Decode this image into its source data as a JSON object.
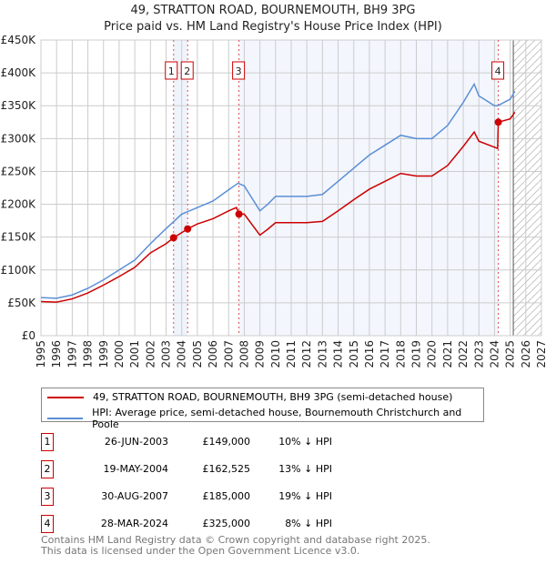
{
  "header": {
    "title": "49, STRATTON ROAD, BOURNEMOUTH, BH9 3PG",
    "subtitle": "Price paid vs. HM Land Registry's House Price Index (HPI)"
  },
  "chart_data": {
    "type": "line",
    "title": "49, STRATTON ROAD, BOURNEMOUTH, BH9 3PG",
    "xlim": [
      1995,
      2027
    ],
    "ylim": [
      0,
      450000
    ],
    "y_ticks": [
      0,
      50000,
      100000,
      150000,
      200000,
      250000,
      300000,
      350000,
      400000,
      450000
    ],
    "y_tick_labels": [
      "£0",
      "£50K",
      "£100K",
      "£150K",
      "£200K",
      "£250K",
      "£300K",
      "£350K",
      "£400K",
      "£450K"
    ],
    "x_ticks": [
      1995,
      1996,
      1997,
      1998,
      1999,
      2000,
      2001,
      2002,
      2003,
      2004,
      2005,
      2006,
      2007,
      2008,
      2009,
      2010,
      2011,
      2012,
      2013,
      2014,
      2015,
      2016,
      2017,
      2018,
      2019,
      2020,
      2021,
      2022,
      2023,
      2024,
      2025,
      2026,
      2027
    ],
    "hatch_from": 2025.2,
    "series": [
      {
        "name": "HPI",
        "color": "#5b8fd6",
        "x": [
          1995,
          1996,
          1997,
          1998,
          1999,
          2000,
          2001,
          2002,
          2003,
          2004,
          2005,
          2006,
          2007,
          2007.6,
          2008,
          2009,
          2009.5,
          2010,
          2011,
          2012,
          2013,
          2014,
          2015,
          2016,
          2017,
          2018,
          2019,
          2020,
          2021,
          2022,
          2022.7,
          2023,
          2024,
          2024.2,
          2025,
          2025.3
        ],
        "y": [
          58000,
          57000,
          62000,
          72000,
          85000,
          100000,
          115000,
          140000,
          163000,
          185000,
          195000,
          205000,
          222000,
          232000,
          228000,
          190000,
          200000,
          212000,
          212000,
          212000,
          215000,
          235000,
          255000,
          275000,
          290000,
          305000,
          300000,
          300000,
          320000,
          355000,
          383000,
          365000,
          350000,
          350000,
          360000,
          372000
        ]
      },
      {
        "name": "Price paid",
        "color": "#cc0000",
        "x": [
          1995,
          1996,
          1997,
          1998,
          1999,
          2000,
          2001,
          2002,
          2003,
          2003.48,
          2004.38,
          2005,
          2006,
          2007,
          2007.5,
          2007.66,
          2008,
          2009,
          2009.5,
          2010,
          2011,
          2012,
          2013,
          2014,
          2015,
          2016,
          2017,
          2018,
          2019,
          2020,
          2021,
          2022,
          2022.7,
          2023,
          2024.2,
          2024.24,
          2025,
          2025.3
        ],
        "y": [
          52000,
          51000,
          56000,
          65000,
          77000,
          90000,
          104000,
          126000,
          140000,
          149000,
          162525,
          170000,
          178000,
          190000,
          195000,
          185000,
          185000,
          153000,
          162000,
          172000,
          172000,
          172000,
          174000,
          190000,
          207000,
          223000,
          235000,
          247000,
          243000,
          243000,
          259000,
          288000,
          310000,
          296000,
          285000,
          325000,
          330000,
          340000
        ]
      }
    ],
    "sales": [
      {
        "label": "1",
        "x": 2003.48,
        "y": 149000
      },
      {
        "label": "2",
        "x": 2004.38,
        "y": 162525
      },
      {
        "label": "3",
        "x": 2007.66,
        "y": 185000
      },
      {
        "label": "4",
        "x": 2024.24,
        "y": 325000
      }
    ]
  },
  "legend": {
    "property": "49, STRATTON ROAD, BOURNEMOUTH, BH9 3PG (semi-detached house)",
    "hpi": "HPI: Average price, semi-detached house, Bournemouth Christchurch and Poole"
  },
  "transactions": [
    {
      "num": "1",
      "date": "26-JUN-2003",
      "price": "£149,000",
      "diff": "10% ↓ HPI"
    },
    {
      "num": "2",
      "date": "19-MAY-2004",
      "price": "£162,525",
      "diff": "13% ↓ HPI"
    },
    {
      "num": "3",
      "date": "30-AUG-2007",
      "price": "£185,000",
      "diff": "19% ↓ HPI"
    },
    {
      "num": "4",
      "date": "28-MAR-2024",
      "price": "£325,000",
      "diff": "8% ↓ HPI"
    }
  ],
  "footer": {
    "line1": "Contains HM Land Registry data © Crown copyright and database right 2025.",
    "line2": "This data is licensed under the Open Government Licence v3.0."
  }
}
